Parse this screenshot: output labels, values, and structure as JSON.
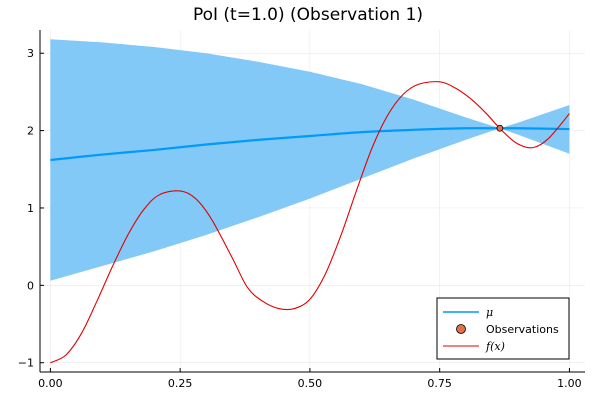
{
  "chart_data": {
    "type": "line",
    "title": "PoI (t=1.0) (Observation 1)",
    "xlabel": "",
    "ylabel": "",
    "xlim": [
      -0.02,
      1.03
    ],
    "ylim": [
      -1.12,
      3.3
    ],
    "xticks": [
      0.0,
      0.25,
      0.5,
      0.75,
      1.0
    ],
    "xtick_labels": [
      "0.00",
      "0.25",
      "0.50",
      "0.75",
      "1.00"
    ],
    "yticks": [
      -1,
      0,
      1,
      2,
      3
    ],
    "ytick_labels": [
      "−1",
      "0",
      "1",
      "2",
      "3"
    ],
    "grid": true,
    "legend_position": "bottom-right",
    "legend": {
      "mu_label": "μ",
      "obs_label": "Observations",
      "f_label": "f(x)"
    },
    "colors": {
      "mu": "#009AFA",
      "band": "#83C9F8",
      "f": "#E30000",
      "obs": "#E26F46"
    },
    "band": {
      "x": [
        0.0,
        0.1,
        0.2,
        0.3,
        0.4,
        0.5,
        0.6,
        0.7,
        0.8,
        0.866,
        0.9,
        1.0
      ],
      "upper": [
        3.18,
        3.14,
        3.08,
        3.0,
        2.89,
        2.76,
        2.6,
        2.4,
        2.17,
        2.03,
        2.1,
        2.33
      ],
      "lower": [
        0.06,
        0.25,
        0.44,
        0.65,
        0.88,
        1.12,
        1.38,
        1.64,
        1.88,
        2.03,
        1.95,
        1.7
      ]
    },
    "series": [
      {
        "name": "μ",
        "x": [
          0.0,
          0.1,
          0.2,
          0.3,
          0.4,
          0.5,
          0.6,
          0.7,
          0.8,
          0.866,
          0.9,
          1.0
        ],
        "y": [
          1.62,
          1.69,
          1.75,
          1.82,
          1.88,
          1.93,
          1.98,
          2.01,
          2.03,
          2.03,
          2.03,
          2.02
        ]
      },
      {
        "name": "f(x)",
        "x": [
          0.0,
          0.03,
          0.06,
          0.09,
          0.12,
          0.15,
          0.18,
          0.21,
          0.25,
          0.28,
          0.31,
          0.35,
          0.38,
          0.41,
          0.44,
          0.47,
          0.5,
          0.53,
          0.56,
          0.59,
          0.62,
          0.65,
          0.68,
          0.71,
          0.75,
          0.78,
          0.81,
          0.84,
          0.87,
          0.9,
          0.93,
          0.96,
          1.0
        ],
        "y": [
          -1.0,
          -0.9,
          -0.62,
          -0.2,
          0.25,
          0.66,
          0.98,
          1.17,
          1.22,
          1.12,
          0.86,
          0.36,
          -0.03,
          -0.21,
          -0.3,
          -0.3,
          -0.18,
          0.15,
          0.65,
          1.23,
          1.78,
          2.2,
          2.47,
          2.6,
          2.63,
          2.55,
          2.41,
          2.22,
          2.0,
          1.83,
          1.78,
          1.9,
          2.22
        ]
      }
    ],
    "observations": [
      {
        "x": 0.866,
        "y": 2.03
      }
    ]
  }
}
